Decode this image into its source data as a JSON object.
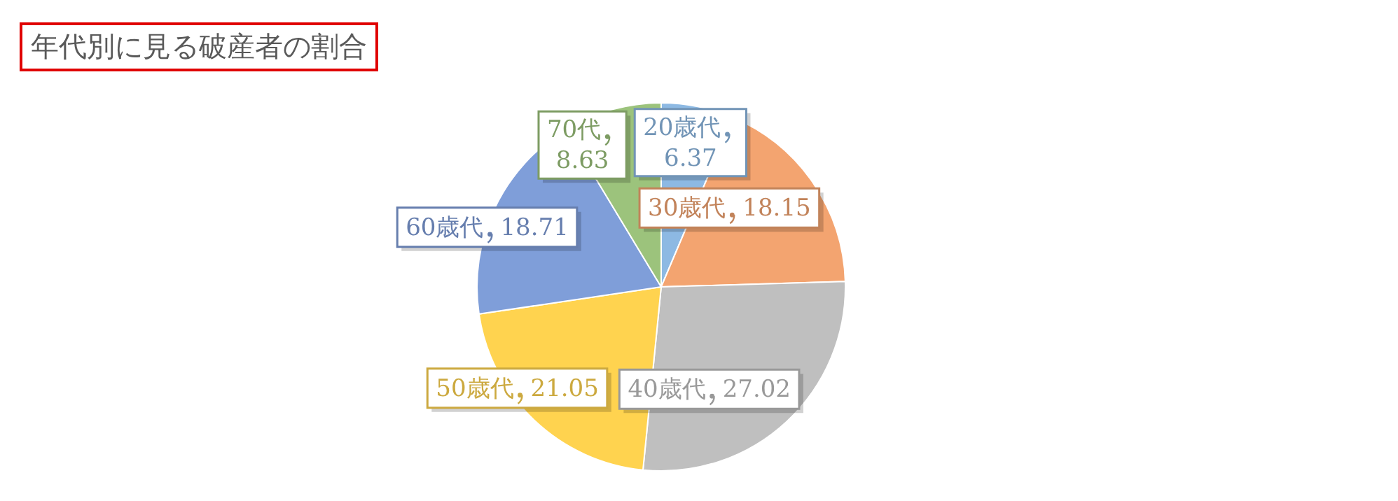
{
  "chart_data": {
    "type": "pie",
    "title": "年代別に見る破産者の割合",
    "categories": [
      "20歳代",
      "30歳代",
      "40歳代",
      "50歳代",
      "60歳代",
      "70代"
    ],
    "values": [
      6.37,
      18.15,
      27.02,
      21.05,
      18.71,
      8.63
    ],
    "colors": [
      "#8db9e3",
      "#f3a470",
      "#bfbfbf",
      "#ffd34f",
      "#7f9ed9",
      "#9cc37c"
    ],
    "data_labels": true,
    "legend": false
  }
}
